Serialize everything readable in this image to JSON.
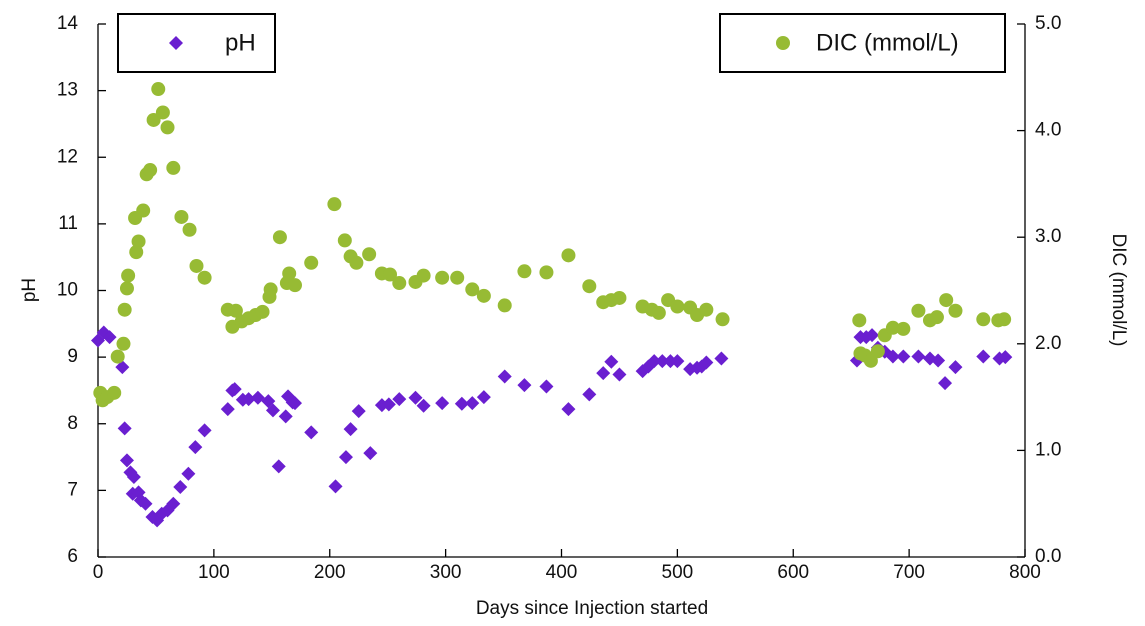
{
  "chart_data": {
    "type": "scatter",
    "xlabel": "Days since Injection started",
    "ylabel": "pH",
    "y2label": "DIC (mmol/L)",
    "xlim": [
      0,
      800
    ],
    "xticks": [
      0,
      100,
      200,
      300,
      400,
      500,
      600,
      700,
      800
    ],
    "ylim": [
      6,
      14
    ],
    "yticks": [
      6,
      7,
      8,
      9,
      10,
      11,
      12,
      13,
      14
    ],
    "y2lim": [
      0,
      5
    ],
    "y2ticks": [
      {
        "value": 0,
        "label": "0.0"
      },
      {
        "value": 1,
        "label": "1.0"
      },
      {
        "value": 2,
        "label": "2.0"
      },
      {
        "value": 3,
        "label": "3.0"
      },
      {
        "value": 4,
        "label": "4.0"
      },
      {
        "value": 5,
        "label": "5.0"
      }
    ],
    "series": [
      {
        "name": "pH",
        "color": "#6a1fd0",
        "marker": "diamond",
        "legend": "upper left",
        "x": [
          0,
          5,
          10,
          21,
          23,
          25,
          28,
          31,
          30,
          35,
          37,
          41,
          47,
          51,
          55,
          60,
          65,
          71,
          78,
          84,
          92,
          112,
          116,
          118,
          125,
          130,
          138,
          147,
          151,
          156,
          162,
          164,
          168,
          170,
          184,
          205,
          214,
          218,
          225,
          235,
          245,
          251,
          260,
          274,
          281,
          297,
          314,
          323,
          333,
          351,
          368,
          387,
          406,
          424,
          436,
          443,
          450,
          470,
          475,
          480,
          487,
          494,
          500,
          511,
          517,
          521,
          525,
          538,
          655,
          658,
          663,
          668,
          673,
          679,
          686,
          695,
          708,
          718,
          725,
          731,
          740,
          764,
          778,
          783
        ],
        "values": [
          9.25,
          9.37,
          9.3,
          8.85,
          7.93,
          7.45,
          7.27,
          7.2,
          6.95,
          6.97,
          6.85,
          6.8,
          6.6,
          6.55,
          6.65,
          6.7,
          6.8,
          7.05,
          7.25,
          7.65,
          7.9,
          8.22,
          8.5,
          8.52,
          8.36,
          8.37,
          8.39,
          8.34,
          8.2,
          7.36,
          8.11,
          8.41,
          8.32,
          8.31,
          7.87,
          7.06,
          7.5,
          7.92,
          8.19,
          7.56,
          8.28,
          8.29,
          8.37,
          8.39,
          8.27,
          8.31,
          8.3,
          8.31,
          8.4,
          8.71,
          8.58,
          8.56,
          8.22,
          8.44,
          8.76,
          8.93,
          8.74,
          8.79,
          8.86,
          8.94,
          8.94,
          8.94,
          8.94,
          8.82,
          8.84,
          8.86,
          8.92,
          8.98,
          8.95,
          9.3,
          9.3,
          9.33,
          9.14,
          9.08,
          9.01,
          9.01,
          9.01,
          8.98,
          8.95,
          8.61,
          8.85,
          9.01,
          8.98,
          9.0
        ]
      },
      {
        "name": "DIC (mmol/L)",
        "color": "#97bb34",
        "marker": "circle",
        "legend": "upper right",
        "axis": "y2",
        "x": [
          2,
          4,
          8,
          14,
          17,
          22,
          23,
          25,
          26,
          32,
          33,
          35,
          39,
          42,
          45,
          48,
          52,
          56,
          60,
          65,
          72,
          79,
          85,
          92,
          112,
          116,
          119,
          124,
          130,
          136,
          142,
          148,
          149,
          157,
          163,
          165,
          170,
          184,
          204,
          213,
          218,
          223,
          234,
          245,
          252,
          260,
          274,
          281,
          297,
          310,
          323,
          333,
          351,
          368,
          387,
          406,
          424,
          436,
          443,
          450,
          470,
          478,
          484,
          492,
          500,
          511,
          517,
          525,
          539,
          657,
          658,
          662,
          667,
          673,
          679,
          686,
          695,
          708,
          718,
          724,
          732,
          740,
          764,
          777,
          782
        ],
        "values": [
          1.54,
          1.47,
          1.5,
          1.54,
          1.88,
          2.0,
          2.32,
          2.52,
          2.64,
          3.18,
          2.86,
          2.96,
          3.25,
          3.59,
          3.63,
          4.1,
          4.39,
          4.17,
          4.03,
          3.65,
          3.19,
          3.07,
          2.73,
          2.62,
          2.32,
          2.16,
          2.31,
          2.21,
          2.24,
          2.27,
          2.3,
          2.44,
          2.51,
          3.0,
          2.57,
          2.66,
          2.55,
          2.76,
          3.31,
          2.97,
          2.82,
          2.76,
          2.84,
          2.66,
          2.65,
          2.57,
          2.58,
          2.64,
          2.62,
          2.62,
          2.51,
          2.45,
          2.36,
          2.68,
          2.67,
          2.83,
          2.54,
          2.39,
          2.41,
          2.43,
          2.35,
          2.32,
          2.29,
          2.41,
          2.35,
          2.34,
          2.27,
          2.32,
          2.23,
          2.22,
          1.91,
          1.89,
          1.84,
          1.93,
          2.08,
          2.15,
          2.14,
          2.31,
          2.22,
          2.25,
          2.41,
          2.31,
          2.23,
          2.22,
          2.23
        ]
      }
    ]
  }
}
